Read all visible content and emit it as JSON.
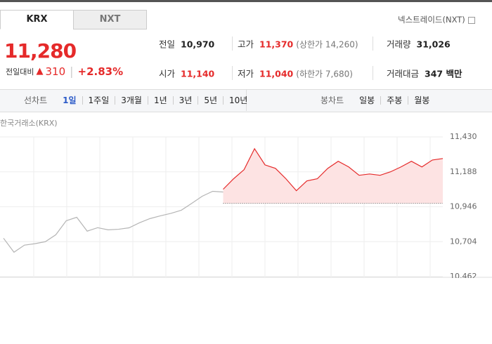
{
  "tabs": [
    "KRX",
    "NXT"
  ],
  "nxt_link": "넥스트레이드(NXT)",
  "price": "11,280",
  "change": {
    "label": "전일대비",
    "amount": "310",
    "percent": "+2.83%"
  },
  "stats": [
    {
      "label": "전일",
      "value": "10,970"
    },
    {
      "label": "고가",
      "value": "11,370",
      "note": "(상한가 14,260)",
      "color": "#e52a2a"
    },
    {
      "label": "거래량",
      "value": "31,026"
    },
    {
      "label": "시가",
      "value": "11,140",
      "color": "#e52a2a"
    },
    {
      "label": "저가",
      "value": "11,040",
      "note": "(하한가 7,680)",
      "color": "#e52a2a"
    },
    {
      "label": "거래대금",
      "value": "347 백만"
    }
  ],
  "toolbar": {
    "line_label": "선차트",
    "line_periods": [
      "1일",
      "1주일",
      "3개월",
      "1년",
      "3년",
      "5년",
      "10년"
    ],
    "candle_label": "봉차트",
    "candle_periods": [
      "일봉",
      "주봉",
      "월봉"
    ]
  },
  "chart_data": {
    "type": "line",
    "title": "한국거래소(KRX)",
    "x": [
      0,
      1,
      2,
      3,
      4,
      5,
      6,
      7,
      8,
      9,
      10,
      11,
      12,
      13,
      14,
      15,
      16,
      17,
      18,
      19,
      20,
      21,
      22,
      23,
      24,
      25,
      26,
      27,
      28,
      29,
      30,
      31,
      32,
      33,
      34,
      35,
      36,
      37,
      38,
      39,
      40,
      41,
      42
    ],
    "xlim": [
      0,
      42
    ],
    "ylim": [
      10462,
      11430
    ],
    "yticks": [
      {
        "value": 10462,
        "label": "10,462"
      },
      {
        "value": 10704,
        "label": "10,704"
      },
      {
        "value": 10946,
        "label": "10,946"
      },
      {
        "value": 11188,
        "label": "11,188"
      },
      {
        "value": 11430,
        "label": "11,430"
      }
    ],
    "baseline": 10970,
    "grid": true,
    "series": [
      {
        "color": "#b5b5b5",
        "values": [
          10728,
          10631,
          10680,
          10690,
          10704,
          10752,
          10849,
          10873,
          10777,
          10801,
          10786,
          10790,
          10800,
          10835,
          10864,
          10883,
          10900,
          10922,
          10970,
          11019,
          11053,
          11048,
          null,
          null,
          null,
          null,
          null,
          null,
          null,
          null,
          null,
          null,
          null,
          null,
          null,
          null,
          null,
          null,
          null,
          null,
          null,
          null,
          null
        ]
      },
      {
        "color": "#e52a2a",
        "fill": "#fde3e3",
        "values": [
          null,
          null,
          null,
          null,
          null,
          null,
          null,
          null,
          null,
          null,
          null,
          null,
          null,
          null,
          null,
          null,
          null,
          null,
          null,
          null,
          null,
          11067,
          11140,
          11203,
          11348,
          11236,
          11212,
          11140,
          11057,
          11125,
          11140,
          11212,
          11261,
          11222,
          11164,
          11173,
          11164,
          11188,
          11222,
          11261,
          11222,
          11270,
          11280
        ]
      }
    ]
  }
}
